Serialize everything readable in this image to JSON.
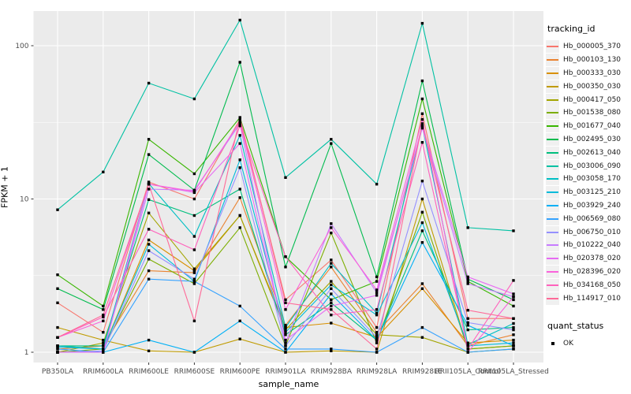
{
  "chart_data": {
    "type": "line",
    "title": "",
    "xlabel": "sample_name",
    "ylabel": "FPKM + 1",
    "y_scale": "log10",
    "y_ticks": [
      "1",
      "10",
      "100"
    ],
    "y_minor_breaks": [
      3.1623,
      31.623
    ],
    "ylim": [
      0.86,
      168
    ],
    "grid": true,
    "panel_bg": "#EBEBEB",
    "grid_color": "#FFFFFF",
    "point_color": "#000000",
    "tick_label_color": "#4D4D4D",
    "categories": [
      "PB350LA",
      "RRIM600LA",
      "RRIM600LE",
      "RRIM600SE",
      "RRIM600PE",
      "RRIM901LA",
      "RRIM928BA",
      "RRIM928LA",
      "RRIM928LE",
      "RRII105LA_Control",
      "RRII105LA_Stressed"
    ],
    "series": [
      {
        "name": "Hb_000005_370",
        "color": "#F8766D",
        "values": [
          2.1,
          1.35,
          12.9,
          10.0,
          33,
          2.2,
          4.0,
          1.45,
          36,
          1.66,
          1.66
        ]
      },
      {
        "name": "Hb_000103_130",
        "color": "#EA8331",
        "values": [
          1.05,
          1.1,
          3.4,
          3.3,
          10.2,
          1.5,
          3.6,
          1.35,
          2.8,
          1.1,
          1.3
        ]
      },
      {
        "name": "Hb_000333_030",
        "color": "#D89000",
        "values": [
          1.1,
          1.05,
          5.4,
          3.4,
          7.8,
          1.45,
          1.55,
          1.25,
          2.6,
          1.15,
          1.2
        ]
      },
      {
        "name": "Hb_000350_030",
        "color": "#C09B00",
        "values": [
          1.45,
          1.2,
          1.02,
          1.0,
          1.22,
          1.0,
          1.02,
          1.0,
          10.0,
          1.05,
          1.1
        ]
      },
      {
        "name": "Hb_000417_050",
        "color": "#A3A500",
        "values": [
          1.0,
          1.15,
          8.1,
          3.5,
          7.8,
          1.4,
          2.9,
          1.3,
          1.25,
          1.0,
          1.05
        ]
      },
      {
        "name": "Hb_001538_080",
        "color": "#7CAE00",
        "values": [
          1.0,
          1.05,
          4.05,
          2.8,
          6.5,
          1.1,
          6.0,
          1.15,
          8.2,
          1.05,
          1.1
        ]
      },
      {
        "name": "Hb_001677_040",
        "color": "#39B600",
        "values": [
          3.2,
          2.0,
          24.5,
          14.6,
          34,
          4.2,
          2.2,
          2.9,
          45,
          2.9,
          2.0
        ]
      },
      {
        "name": "Hb_002495_030",
        "color": "#00BB4E",
        "values": [
          2.6,
          1.9,
          19.5,
          11.4,
          78,
          3.6,
          23,
          3.1,
          59,
          3.0,
          2.2
        ]
      },
      {
        "name": "Hb_002613_040",
        "color": "#00BF7D",
        "values": [
          1.1,
          1.1,
          9.9,
          7.8,
          11.6,
          1.3,
          2.1,
          1.2,
          6.2,
          1.4,
          1.45
        ]
      },
      {
        "name": "Hb_003006_090",
        "color": "#00C1A3",
        "values": [
          8.5,
          15,
          57,
          45,
          147,
          13.8,
          24.5,
          12.5,
          140,
          6.5,
          6.2
        ]
      },
      {
        "name": "Hb_003058_170",
        "color": "#00BFC4",
        "values": [
          1.1,
          1.05,
          12.6,
          5.7,
          26,
          1.45,
          3.8,
          1.8,
          30,
          1.12,
          1.54
        ]
      },
      {
        "name": "Hb_003125_210",
        "color": "#00BBDA",
        "values": [
          1.08,
          1.05,
          5.06,
          2.9,
          18,
          1.35,
          2.75,
          1.75,
          7.0,
          1.1,
          1.15
        ]
      },
      {
        "name": "Hb_003929_240",
        "color": "#00B0F6",
        "values": [
          1.0,
          1.0,
          1.2,
          1.0,
          1.6,
          1.0,
          2.4,
          1.2,
          5.2,
          1.5,
          1.1
        ]
      },
      {
        "name": "Hb_006569_080",
        "color": "#35A2FF",
        "values": [
          1.05,
          1.0,
          3.0,
          2.9,
          2.0,
          1.05,
          1.05,
          1.0,
          1.45,
          1.0,
          1.05
        ]
      },
      {
        "name": "Hb_006750_010",
        "color": "#9590FF",
        "values": [
          1.0,
          1.02,
          4.6,
          3.0,
          16,
          1.1,
          2.6,
          1.25,
          13.1,
          1.56,
          1.4
        ]
      },
      {
        "name": "Hb_010222_040",
        "color": "#C77CFF",
        "values": [
          1.0,
          1.0,
          11.6,
          11.4,
          31,
          1.15,
          6.9,
          2.45,
          29,
          2.8,
          2.3
        ]
      },
      {
        "name": "Hb_020378_020",
        "color": "#E76BF3",
        "values": [
          1.0,
          1.0,
          12.5,
          11.0,
          23,
          1.2,
          2.0,
          2.35,
          30,
          3.1,
          2.4
        ]
      },
      {
        "name": "Hb_028396_020",
        "color": "#FA62DB",
        "values": [
          1.25,
          1.6,
          12.5,
          11.2,
          32,
          1.9,
          6.5,
          2.55,
          33,
          1.0,
          2.3
        ]
      },
      {
        "name": "Hb_034168_050",
        "color": "#FF62BC",
        "values": [
          1.25,
          1.7,
          6.35,
          4.66,
          30,
          4.2,
          1.75,
          1.9,
          23.4,
          1.05,
          2.94
        ]
      },
      {
        "name": "Hb_114917_010",
        "color": "#FF6A98",
        "values": [
          1.25,
          1.75,
          12.5,
          1.6,
          34,
          2.1,
          1.9,
          1.05,
          31,
          1.88,
          1.66
        ]
      }
    ],
    "legend": {
      "position": "right",
      "tracking_title": "tracking_id",
      "quant_title": "quant_status",
      "quant_items": [
        {
          "label": "OK",
          "marker": "black-square"
        }
      ]
    }
  }
}
